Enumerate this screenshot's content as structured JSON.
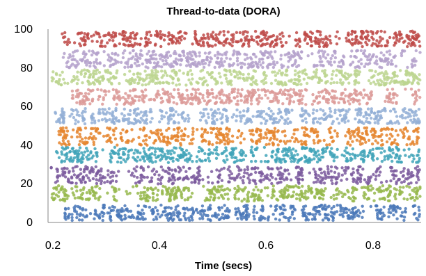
{
  "chart_data": {
    "type": "scatter",
    "title": "Thread-to-data (DORA)",
    "xlabel": "Time (secs)",
    "ylabel": "",
    "xlim": [
      0.2,
      0.9
    ],
    "ylim": [
      0,
      100
    ],
    "x_ticks": [
      "0.2",
      "0.4",
      "0.6",
      "0.8"
    ],
    "y_ticks": [
      "0",
      "20",
      "40",
      "60",
      "80",
      "100"
    ],
    "grid": false,
    "legend": "none",
    "bands": [
      {
        "y_range": [
          1,
          9
        ],
        "color": "#4a78b8"
      },
      {
        "y_range": [
          11,
          19
        ],
        "color": "#97b94e"
      },
      {
        "y_range": [
          20,
          29
        ],
        "color": "#7b5a9e"
      },
      {
        "y_range": [
          31,
          39
        ],
        "color": "#3fa3b8"
      },
      {
        "y_range": [
          40,
          49
        ],
        "color": "#e5852e"
      },
      {
        "y_range": [
          51,
          59
        ],
        "color": "#93afd6"
      },
      {
        "y_range": [
          61,
          69
        ],
        "color": "#dc9a98"
      },
      {
        "y_range": [
          71,
          79
        ],
        "color": "#bcd58f"
      },
      {
        "y_range": [
          80,
          89
        ],
        "color": "#b4a1cb"
      },
      {
        "y_range": [
          91,
          99
        ],
        "color": "#be4a48"
      }
    ]
  }
}
